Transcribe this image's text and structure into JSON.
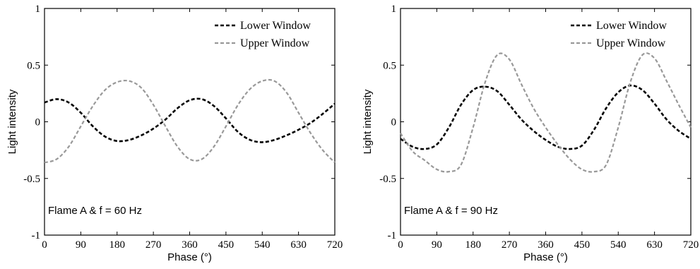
{
  "chart_data": [
    {
      "type": "line",
      "annotation": "Flame A & f = 60 Hz",
      "xlabel": "Phase (°)",
      "ylabel": "Light intensity",
      "xlim": [
        0,
        720
      ],
      "ylim": [
        -1,
        1
      ],
      "xticks": [
        0,
        90,
        180,
        270,
        360,
        450,
        540,
        630,
        720
      ],
      "yticks": [
        -1,
        -0.5,
        0,
        0.5,
        1
      ],
      "ytick_labels": [
        "-1",
        "-0.5",
        "0",
        "0.5",
        "1"
      ],
      "legend": "top-right",
      "series": [
        {
          "name": "Lower Window",
          "color": "#000000",
          "style": "dashed",
          "x": [
            0,
            30,
            60,
            90,
            120,
            150,
            180,
            210,
            240,
            270,
            300,
            330,
            360,
            390,
            420,
            450,
            480,
            510,
            540,
            570,
            600,
            630,
            660,
            690,
            720
          ],
          "values": [
            0.17,
            0.2,
            0.17,
            0.08,
            -0.04,
            -0.13,
            -0.17,
            -0.16,
            -0.12,
            -0.06,
            0.02,
            0.12,
            0.19,
            0.2,
            0.14,
            0.03,
            -0.09,
            -0.16,
            -0.18,
            -0.16,
            -0.12,
            -0.07,
            -0.01,
            0.07,
            0.16
          ]
        },
        {
          "name": "Upper Window",
          "color": "#999999",
          "style": "dashed",
          "x": [
            0,
            30,
            60,
            90,
            120,
            150,
            180,
            210,
            240,
            270,
            300,
            330,
            360,
            390,
            420,
            450,
            480,
            510,
            540,
            570,
            600,
            630,
            660,
            690,
            720
          ],
          "values": [
            -0.36,
            -0.33,
            -0.22,
            -0.04,
            0.14,
            0.28,
            0.35,
            0.36,
            0.3,
            0.15,
            -0.04,
            -0.22,
            -0.33,
            -0.33,
            -0.22,
            -0.04,
            0.15,
            0.29,
            0.36,
            0.36,
            0.26,
            0.08,
            -0.1,
            -0.25,
            -0.36
          ]
        }
      ]
    },
    {
      "type": "line",
      "annotation": "Flame A & f = 90 Hz",
      "xlabel": "Phase (°)",
      "ylabel": "Light intensity",
      "xlim": [
        0,
        720
      ],
      "ylim": [
        -1,
        1
      ],
      "xticks": [
        0,
        90,
        180,
        270,
        360,
        450,
        540,
        630,
        720
      ],
      "yticks": [
        -1,
        -0.5,
        0,
        0.5,
        1
      ],
      "ytick_labels": [
        "-1",
        "-0.5",
        "0",
        "0.5",
        "1"
      ],
      "legend": "top-right",
      "series": [
        {
          "name": "Lower Window",
          "color": "#000000",
          "style": "dashed",
          "x": [
            0,
            30,
            60,
            90,
            120,
            150,
            180,
            210,
            240,
            270,
            300,
            330,
            360,
            390,
            420,
            450,
            480,
            510,
            540,
            570,
            600,
            630,
            660,
            690,
            720
          ],
          "values": [
            -0.15,
            -0.22,
            -0.24,
            -0.2,
            -0.05,
            0.15,
            0.28,
            0.31,
            0.27,
            0.15,
            0.02,
            -0.08,
            -0.16,
            -0.22,
            -0.24,
            -0.21,
            -0.07,
            0.12,
            0.26,
            0.32,
            0.28,
            0.16,
            0.02,
            -0.08,
            -0.15
          ]
        },
        {
          "name": "Upper Window",
          "color": "#999999",
          "style": "dashed",
          "x": [
            0,
            30,
            60,
            90,
            120,
            150,
            180,
            210,
            240,
            270,
            300,
            330,
            360,
            390,
            420,
            450,
            480,
            510,
            540,
            570,
            600,
            630,
            660,
            690,
            720
          ],
          "values": [
            -0.1,
            -0.26,
            -0.34,
            -0.42,
            -0.44,
            -0.38,
            -0.05,
            0.35,
            0.59,
            0.55,
            0.33,
            0.12,
            -0.05,
            -0.2,
            -0.33,
            -0.42,
            -0.44,
            -0.38,
            -0.05,
            0.35,
            0.59,
            0.56,
            0.36,
            0.15,
            -0.05
          ]
        }
      ]
    }
  ]
}
